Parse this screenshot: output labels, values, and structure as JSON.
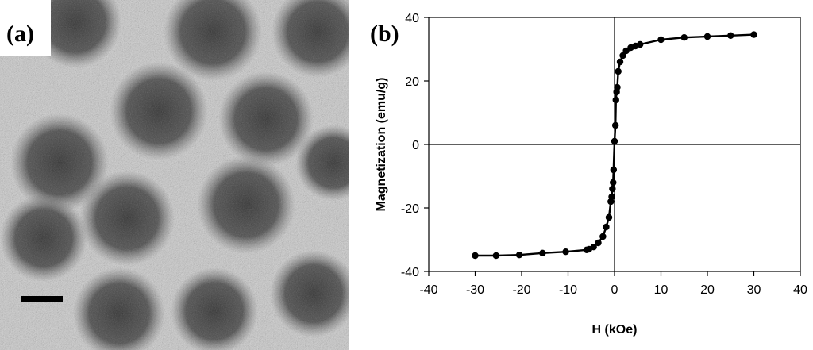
{
  "panel_a": {
    "label": "(a)"
  },
  "panel_b": {
    "label": "(b)"
  },
  "chart_data": {
    "type": "line",
    "title": "",
    "xlabel": "H (kOe)",
    "ylabel": "Magnetization (emu/g)",
    "xlim": [
      -40,
      40
    ],
    "ylim": [
      -40,
      40
    ],
    "xticks": [
      -40,
      -30,
      -20,
      -10,
      0,
      10,
      20,
      30,
      40
    ],
    "yticks": [
      -40,
      -20,
      0,
      20,
      40
    ],
    "grid": false,
    "legend": "none",
    "series": [
      {
        "color": "#000000",
        "markers": true,
        "x": [
          -30,
          -25.5,
          -20.5,
          -15.5,
          -10.5,
          -6,
          -5.5,
          -4.5,
          -3.5,
          -2.5,
          -1.8,
          -1.2,
          -0.8,
          -0.6,
          -0.45,
          -0.3,
          -0.2,
          0,
          0.2,
          0.3,
          0.45,
          0.6,
          0.8,
          1.2,
          1.8,
          2.5,
          3.5,
          4.5,
          5.5,
          10,
          15,
          20,
          25,
          30
        ],
        "y": [
          -35,
          -35,
          -34.8,
          -34.2,
          -33.8,
          -33.2,
          -33,
          -32.3,
          -31,
          -29,
          -26,
          -23,
          -18,
          -16.5,
          -14,
          -12,
          -8,
          1,
          6,
          14,
          16.5,
          18,
          23,
          26,
          28,
          29.5,
          30.5,
          31,
          31.5,
          33,
          33.7,
          34,
          34.3,
          34.6
        ]
      }
    ]
  }
}
